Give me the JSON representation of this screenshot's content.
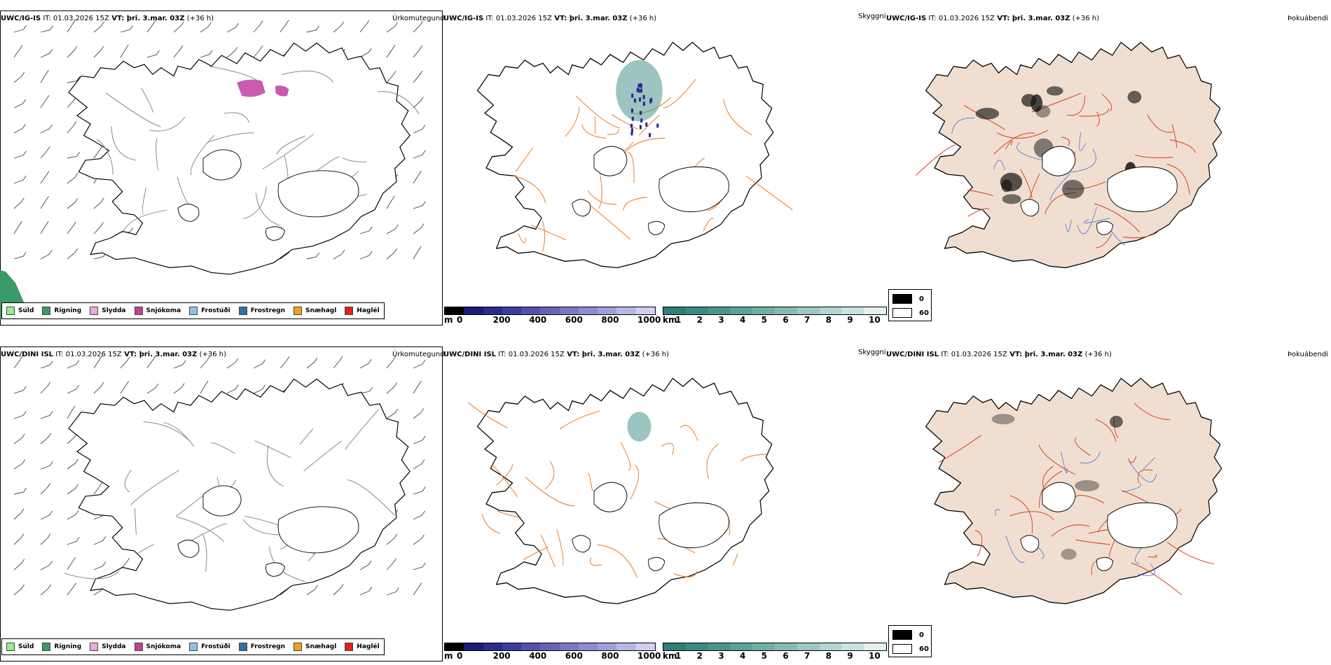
{
  "rows": [
    {
      "header": {
        "model": "UWC/IG-IS",
        "it_label": " IT: ",
        "it": "01.03.2026 15Z",
        "vt_label": " VT: ",
        "vt": "þri. 3.mar. 03Z",
        "lead": " (+36 h)"
      },
      "field_precip": "Úrkomutegund",
      "field_vis": "Skyggni",
      "field_fog": "Þokuábendi"
    },
    {
      "header": {
        "model": "UWC/DINI ISL",
        "it_label": " IT: ",
        "it": "01.03.2026 15Z",
        "vt_label": " VT: ",
        "vt": "þri. 3.mar. 03Z",
        "lead": " (+36 h)"
      },
      "field_precip": "Úrkomutegund",
      "field_vis": "Skyggni",
      "field_fog": "Þokuábendi"
    }
  ],
  "precip_legend": [
    {
      "label": "Súld",
      "color": "#90ee90"
    },
    {
      "label": "Rigning",
      "color": "#3a9a6a"
    },
    {
      "label": "Slydda",
      "color": "#f0a8d8"
    },
    {
      "label": "Snjókoma",
      "color": "#c040a0"
    },
    {
      "label": "Frostúði",
      "color": "#90c0ea"
    },
    {
      "label": "Frostregn",
      "color": "#3070b0"
    },
    {
      "label": "Snæhagl",
      "color": "#f0a020"
    },
    {
      "label": "Haglél",
      "color": "#e02020"
    }
  ],
  "elevation_bar": {
    "unit": "m",
    "ticks": [
      "0",
      "200",
      "400",
      "600",
      "800",
      "1000"
    ],
    "colors": [
      "#000000",
      "#1a1a7a",
      "#2a2a90",
      "#3c3ca0",
      "#5050b0",
      "#6464b8",
      "#7878c4",
      "#8c8cce",
      "#a0a0d8",
      "#b8b8e4",
      "#d0d0ee"
    ]
  },
  "visibility_bar": {
    "unit": "km",
    "ticks": [
      "1",
      "2",
      "3",
      "4",
      "5",
      "6",
      "7",
      "8",
      "9",
      "10"
    ],
    "colors": [
      "#2a7f7a",
      "#3a8a84",
      "#4a968f",
      "#5ca29b",
      "#70aea8",
      "#86bbb5",
      "#9cc8c3",
      "#b2d5d1",
      "#cae3e0",
      "#e2f1ef"
    ]
  },
  "fog_legend": {
    "high": "0",
    "low": "60"
  },
  "colors": {
    "coast": "#000000",
    "roads_orange": "#e8822a",
    "roads_red": "#d84a2a",
    "land_fog": "#f0dfd0",
    "rivers": "#5070e0"
  }
}
